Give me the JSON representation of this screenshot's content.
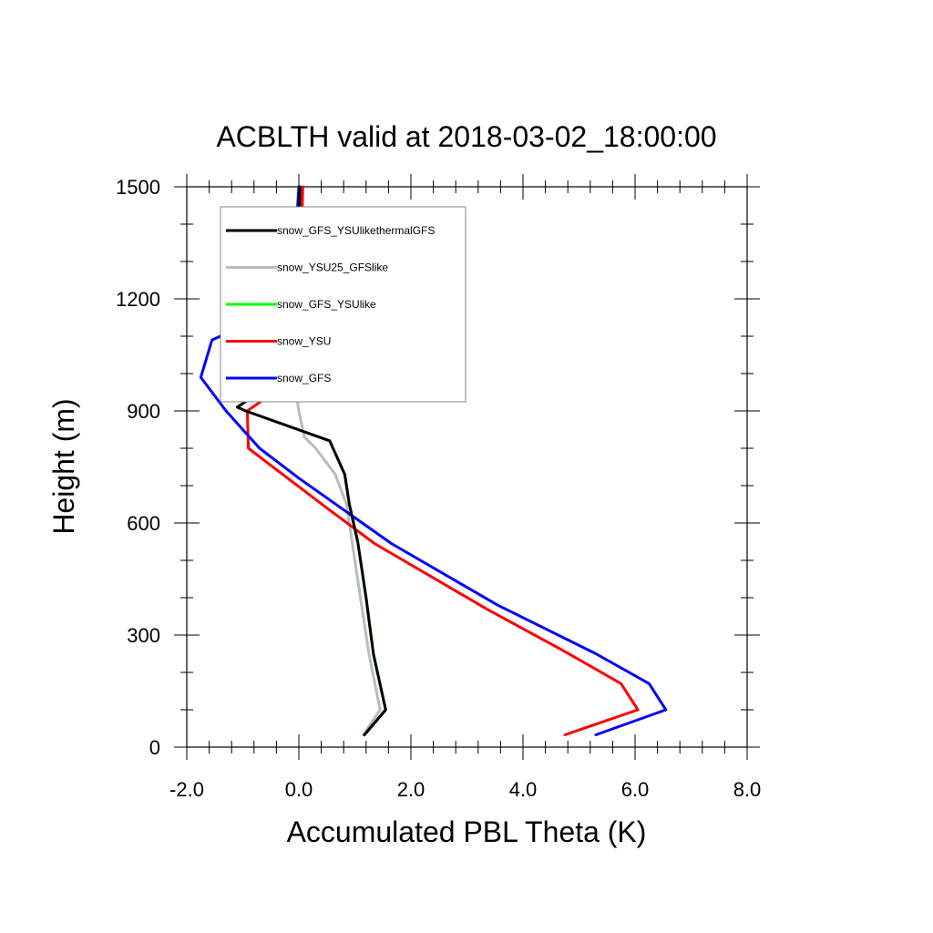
{
  "chart_data": {
    "type": "line",
    "title": "ACBLTH valid at 2018-03-02_18:00:00",
    "xlabel": "Accumulated PBL Theta (K)",
    "ylabel": "Height (m)",
    "xlim": [
      -2.0,
      8.0
    ],
    "ylim": [
      0,
      1500
    ],
    "xticks": [
      "-2.0",
      "0.0",
      "2.0",
      "4.0",
      "6.0",
      "8.0"
    ],
    "xtick_values": [
      -2,
      0,
      2,
      4,
      6,
      8
    ],
    "yticks": [
      "0",
      "300",
      "600",
      "900",
      "1200",
      "1500"
    ],
    "ytick_values": [
      0,
      300,
      600,
      900,
      1200,
      1500
    ],
    "grid": false,
    "legend_position": "top-left",
    "series": [
      {
        "name": "snow_GFS_YSUlikethermalGFS",
        "color": "#000000",
        "points": [
          [
            1.17,
            33
          ],
          [
            1.55,
            100
          ],
          [
            1.33,
            250
          ],
          [
            1.2,
            400
          ],
          [
            1.05,
            550
          ],
          [
            0.9,
            650
          ],
          [
            0.82,
            730
          ],
          [
            0.55,
            820
          ],
          [
            -0.95,
            900
          ],
          [
            -1.1,
            910
          ],
          [
            -0.5,
            970
          ],
          [
            -0.05,
            1010
          ],
          [
            0.0,
            1100
          ],
          [
            0.0,
            1250
          ],
          [
            0.0,
            1380
          ],
          [
            0.02,
            1500
          ]
        ]
      },
      {
        "name": "snow_YSU25_GFSlike",
        "color": "#bbbbbb",
        "points": [
          [
            1.15,
            33
          ],
          [
            1.45,
            100
          ],
          [
            1.25,
            250
          ],
          [
            1.1,
            400
          ],
          [
            0.95,
            550
          ],
          [
            0.85,
            650
          ],
          [
            0.65,
            730
          ],
          [
            0.3,
            800
          ],
          [
            0.1,
            830
          ],
          [
            0.0,
            900
          ],
          [
            -0.05,
            950
          ],
          [
            -0.05,
            1010
          ],
          [
            0.0,
            1100
          ],
          [
            0.0,
            1250
          ],
          [
            0.0,
            1380
          ],
          [
            0.02,
            1500
          ]
        ]
      },
      {
        "name": "snow_GFS_YSUlike",
        "color": "#00ff00",
        "points": [
          [
            1.17,
            33
          ],
          [
            1.55,
            100
          ],
          [
            1.33,
            250
          ],
          [
            1.2,
            400
          ],
          [
            1.05,
            550
          ],
          [
            0.9,
            650
          ],
          [
            0.82,
            730
          ],
          [
            0.55,
            820
          ],
          [
            -0.95,
            900
          ],
          [
            -1.1,
            910
          ],
          [
            -0.5,
            970
          ],
          [
            -0.05,
            1010
          ],
          [
            0.0,
            1100
          ],
          [
            0.0,
            1250
          ],
          [
            0.0,
            1380
          ],
          [
            0.02,
            1500
          ]
        ]
      },
      {
        "name": "snow_YSU",
        "color": "#ff0000",
        "points": [
          [
            4.75,
            33
          ],
          [
            6.05,
            100
          ],
          [
            5.75,
            170
          ],
          [
            4.7,
            260
          ],
          [
            3.35,
            370
          ],
          [
            1.35,
            545
          ],
          [
            0.5,
            640
          ],
          [
            -0.9,
            800
          ],
          [
            -0.92,
            900
          ],
          [
            -0.2,
            975
          ],
          [
            -0.12,
            1010
          ],
          [
            0.0,
            1100
          ],
          [
            0.0,
            1250
          ],
          [
            0.05,
            1380
          ],
          [
            0.07,
            1500
          ]
        ]
      },
      {
        "name": "snow_GFS",
        "color": "#0000ff",
        "points": [
          [
            5.3,
            33
          ],
          [
            6.55,
            100
          ],
          [
            6.25,
            170
          ],
          [
            5.3,
            250
          ],
          [
            3.55,
            380
          ],
          [
            1.65,
            545
          ],
          [
            0.0,
            720
          ],
          [
            -0.7,
            800
          ],
          [
            -1.3,
            900
          ],
          [
            -1.75,
            990
          ],
          [
            -1.55,
            1090
          ],
          [
            -0.2,
            1180
          ],
          [
            -0.1,
            1250
          ],
          [
            -0.05,
            1380
          ],
          [
            0.0,
            1500
          ]
        ]
      }
    ]
  }
}
